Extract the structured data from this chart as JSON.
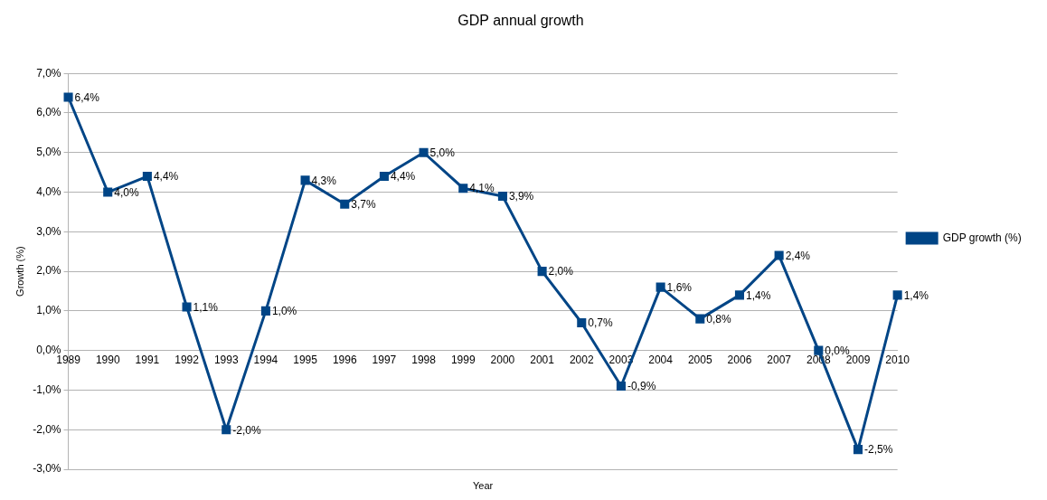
{
  "chart_data": {
    "type": "line",
    "title": "GDP annual growth",
    "xlabel": "Year",
    "ylabel": "Growth (%)",
    "categories": [
      "1989",
      "1990",
      "1991",
      "1992",
      "1993",
      "1994",
      "1995",
      "1996",
      "1997",
      "1998",
      "1999",
      "2000",
      "2001",
      "2002",
      "2003",
      "2004",
      "2005",
      "2006",
      "2007",
      "2008",
      "2009",
      "2010"
    ],
    "series": [
      {
        "name": "GDP growth (%)",
        "color": "#004586",
        "values": [
          6.4,
          4.0,
          4.4,
          1.1,
          -2.0,
          1.0,
          4.3,
          3.7,
          4.4,
          5.0,
          4.1,
          3.9,
          2.0,
          0.7,
          -0.9,
          1.6,
          0.8,
          1.4,
          2.4,
          0.0,
          -2.5,
          1.4
        ],
        "value_labels": [
          "6,4%",
          "4,0%",
          "4,4%",
          "1,1%",
          "-2,0%",
          "1,0%",
          "4,3%",
          "3,7%",
          "4,4%",
          "5,0%",
          "4,1%",
          "3,9%",
          "2,0%",
          "0,7%",
          "-0,9%",
          "1,6%",
          "0,8%",
          "1,4%",
          "2,4%",
          "0,0%",
          "-2,5%",
          "1,4%"
        ]
      }
    ],
    "ylim": [
      -3,
      7
    ],
    "yticks": [
      {
        "value": -3,
        "label": "-3,0%"
      },
      {
        "value": -2,
        "label": "-2,0%"
      },
      {
        "value": -1,
        "label": "-1,0%"
      },
      {
        "value": 0,
        "label": "0,0%"
      },
      {
        "value": 1,
        "label": "1,0%"
      },
      {
        "value": 2,
        "label": "2,0%"
      },
      {
        "value": 3,
        "label": "3,0%"
      },
      {
        "value": 4,
        "label": "4,0%"
      },
      {
        "value": 5,
        "label": "5,0%"
      },
      {
        "value": 6,
        "label": "6,0%"
      },
      {
        "value": 7,
        "label": "7,0%"
      }
    ],
    "grid": "y",
    "legend": "right",
    "marker": "square",
    "line_style": "solid"
  }
}
